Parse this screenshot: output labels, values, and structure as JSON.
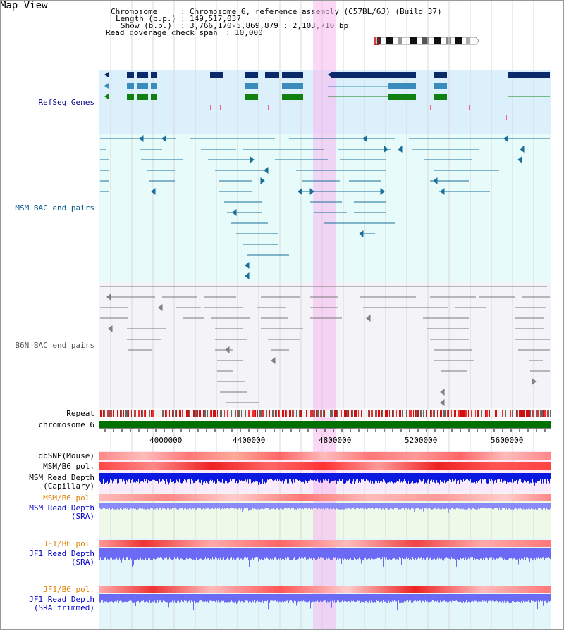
{
  "view": {
    "title": "Map View"
  },
  "info": {
    "chromosome_label": "Chromosome",
    "chromosome_value": "Chromosome 6, reference assembly (C57BL/6J) (Build 37)",
    "length_label": "Length (b.p.)",
    "length_value": "149,517,037",
    "show_label": "Show (b.p.)",
    "show_value": "3,766,170-5,869,879 : 2,103,710 bp",
    "coverage_label": "Read coverage check span",
    "coverage_value": "10,000"
  },
  "tracks": {
    "refseq": "RefSeq Genes",
    "msm_bac": "MSM BAC end pairs",
    "b6n_bac": "B6N BAC end pairs",
    "repeat": "Repeat",
    "chromosome": "chromosome 6",
    "dbsnp": "dbSNP(Mouse)",
    "msm_pol": "MSM/B6 pol.",
    "msm_depth_cap_1": "MSM Read Depth",
    "msm_depth_cap_2": "(Capillary)",
    "msm_pol_sra": "MSM/B6 pol.",
    "msm_depth_sra_1": "MSM Read Depth",
    "msm_depth_sra_2": "(SRA)",
    "jf1_pol_1": "JF1/B6 pol.",
    "jf1_depth_sra_1": "JF1 Read Depth",
    "jf1_depth_sra_2": "(SRA)",
    "jf1_pol_2": "JF1/B6 pol.",
    "jf1_depth_trim_1": "JF1 Read Depth",
    "jf1_depth_trim_2": "(SRA trimmed)"
  },
  "axis": {
    "ticks": [
      "4000000",
      "4400000",
      "4800000",
      "5200000",
      "5600000"
    ]
  },
  "colors": {
    "refseq_label": "#00008b",
    "msm_label": "#005a8c",
    "b6n_label": "#555555",
    "orange_label": "#e08000",
    "blue_label": "#0000cc",
    "highlight": "#f4c8f0",
    "chromosome": "#007000"
  }
}
